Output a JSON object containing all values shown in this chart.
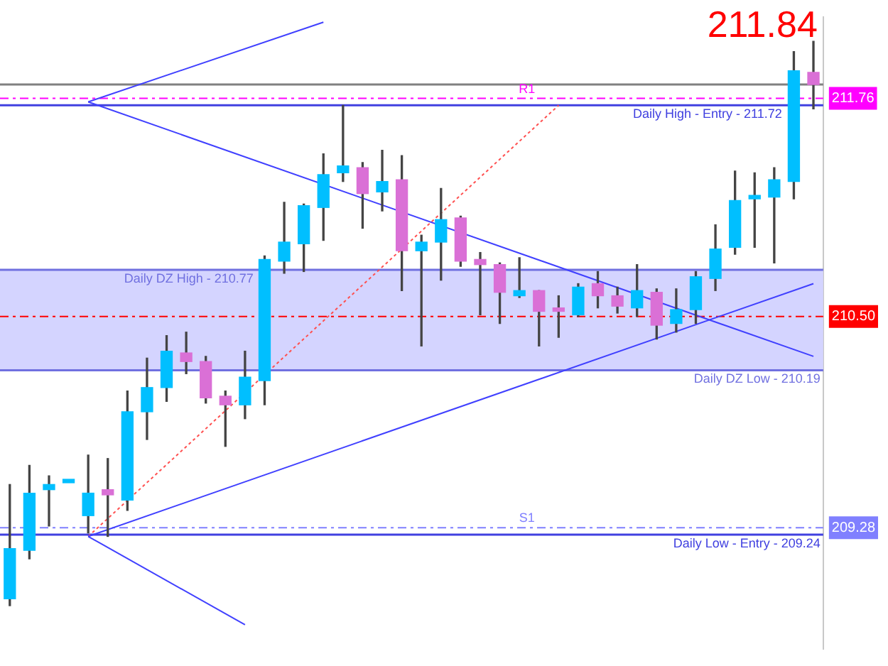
{
  "chart_data": {
    "type": "candlestick",
    "categories": [
      null,
      null,
      null,
      null,
      null,
      null,
      null,
      null,
      null,
      null,
      null,
      null,
      null,
      null,
      null,
      null,
      null,
      null,
      null,
      null,
      null,
      null,
      null,
      null,
      null,
      null,
      null,
      null,
      null,
      null,
      null,
      null,
      null,
      null,
      null,
      null,
      null,
      null,
      null,
      null,
      null,
      null
    ],
    "ohlc": [
      [
        208.87,
        209.53,
        208.83,
        209.16
      ],
      [
        209.15,
        209.64,
        209.1,
        209.48
      ],
      [
        209.5,
        209.58,
        209.29,
        209.53
      ],
      [
        209.54,
        209.56,
        209.54,
        209.56
      ],
      [
        209.35,
        209.7,
        209.25,
        209.48
      ],
      [
        209.5,
        209.68,
        209.23,
        209.47
      ],
      [
        209.44,
        210.07,
        209.38,
        209.95
      ],
      [
        209.95,
        210.26,
        209.79,
        210.09
      ],
      [
        210.09,
        210.39,
        210.01,
        210.3
      ],
      [
        210.29,
        210.41,
        210.17,
        210.24
      ],
      [
        210.24,
        210.27,
        210.0,
        210.03
      ],
      [
        210.04,
        210.07,
        209.75,
        209.99
      ],
      [
        209.99,
        210.3,
        209.91,
        210.15
      ],
      [
        210.13,
        210.85,
        209.99,
        210.83
      ],
      [
        210.82,
        211.16,
        210.75,
        210.93
      ],
      [
        210.92,
        211.15,
        210.76,
        211.14
      ],
      [
        211.13,
        211.44,
        210.94,
        211.32
      ],
      [
        211.33,
        211.72,
        211.28,
        211.37
      ],
      [
        211.36,
        211.39,
        211.01,
        211.21
      ],
      [
        211.22,
        211.46,
        211.11,
        211.28
      ],
      [
        211.29,
        211.43,
        210.65,
        210.88
      ],
      [
        210.88,
        210.97,
        210.33,
        210.93
      ],
      [
        210.93,
        211.24,
        210.71,
        211.06
      ],
      [
        211.07,
        211.08,
        210.79,
        210.82
      ],
      [
        210.83,
        210.87,
        210.51,
        210.8
      ],
      [
        210.8,
        210.81,
        210.46,
        210.64
      ],
      [
        210.62,
        210.84,
        210.61,
        210.65
      ],
      [
        210.65,
        210.65,
        210.33,
        210.53
      ],
      [
        210.55,
        210.62,
        210.38,
        210.53
      ],
      [
        210.51,
        210.69,
        210.5,
        210.67
      ],
      [
        210.69,
        210.76,
        210.55,
        210.62
      ],
      [
        210.62,
        210.67,
        210.52,
        210.56
      ],
      [
        210.55,
        210.8,
        210.5,
        210.65
      ],
      [
        210.64,
        210.66,
        210.37,
        210.45
      ],
      [
        210.46,
        210.66,
        210.41,
        210.54
      ],
      [
        210.54,
        210.76,
        210.46,
        210.73
      ],
      [
        210.72,
        211.03,
        210.65,
        210.89
      ],
      [
        210.9,
        211.34,
        210.86,
        211.17
      ],
      [
        211.18,
        211.33,
        210.9,
        211.2
      ],
      [
        211.19,
        211.36,
        210.81,
        211.29
      ],
      [
        211.28,
        212.03,
        211.18,
        211.92
      ],
      [
        211.91,
        212.09,
        211.7,
        211.84
      ]
    ],
    "colors": [
      "#00bfff",
      "#00bfff",
      "#00bfff",
      "#00bfff",
      "#00bfff",
      "#da70d6",
      "#00bfff",
      "#00bfff",
      "#00bfff",
      "#da70d6",
      "#da70d6",
      "#da70d6",
      "#00bfff",
      "#00bfff",
      "#00bfff",
      "#00bfff",
      "#00bfff",
      "#00bfff",
      "#da70d6",
      "#00bfff",
      "#da70d6",
      "#00bfff",
      "#00bfff",
      "#da70d6",
      "#da70d6",
      "#da70d6",
      "#00bfff",
      "#da70d6",
      "#da70d6",
      "#00bfff",
      "#da70d6",
      "#da70d6",
      "#00bfff",
      "#da70d6",
      "#00bfff",
      "#00bfff",
      "#00bfff",
      "#00bfff",
      "#00bfff",
      "#00bfff",
      "#00bfff",
      "#da70d6"
    ],
    "series": [
      {
        "type": "line",
        "color": "#4040ff",
        "values": [
          null,
          null,
          null,
          null,
          211.74,
          null,
          null,
          null,
          null,
          null,
          null,
          null,
          null,
          null,
          null,
          null,
          212.2,
          null,
          null,
          null,
          null,
          null,
          null,
          null,
          null,
          null,
          null,
          null,
          null,
          null,
          null,
          null,
          null,
          null,
          null,
          null,
          null,
          null,
          null,
          null,
          null,
          null
        ]
      },
      {
        "type": "line",
        "color": "#4040ff",
        "values": [
          null,
          null,
          null,
          null,
          211.74,
          null,
          null,
          null,
          null,
          null,
          null,
          null,
          null,
          null,
          null,
          null,
          null,
          null,
          null,
          null,
          null,
          null,
          null,
          null,
          null,
          null,
          null,
          null,
          null,
          null,
          null,
          null,
          null,
          null,
          null,
          null,
          null,
          null,
          null,
          null,
          null,
          210.27
        ]
      },
      {
        "type": "line",
        "color": "#4040ff",
        "values": [
          null,
          null,
          null,
          null,
          209.23,
          null,
          null,
          null,
          null,
          null,
          null,
          null,
          null,
          null,
          null,
          null,
          null,
          null,
          null,
          null,
          null,
          null,
          null,
          null,
          null,
          null,
          null,
          null,
          null,
          null,
          null,
          null,
          null,
          null,
          null,
          null,
          null,
          null,
          null,
          null,
          null,
          210.69
        ]
      },
      {
        "type": "line",
        "color": "#4040ff",
        "values": [
          null,
          null,
          null,
          null,
          209.23,
          null,
          null,
          null,
          null,
          null,
          null,
          null,
          208.72,
          null,
          null,
          null,
          null,
          null,
          null,
          null,
          null,
          null,
          null,
          null,
          null,
          null,
          null,
          null,
          null,
          null,
          null,
          null,
          null,
          null,
          null,
          null,
          null,
          null,
          null,
          null,
          null,
          null
        ]
      },
      {
        "type": "line",
        "color": "#ff5050",
        "line_style": "dotted",
        "values": [
          null,
          null,
          null,
          null,
          209.23,
          null,
          null,
          null,
          null,
          null,
          null,
          null,
          null,
          null,
          null,
          null,
          null,
          null,
          null,
          null,
          null,
          null,
          null,
          null,
          null,
          null,
          null,
          null,
          211.72,
          null,
          null,
          null,
          null,
          null,
          null,
          null,
          null,
          null,
          null,
          null,
          null,
          null
        ]
      }
    ],
    "ylim": [
      208.58,
      212.23
    ],
    "yticks": [
      {
        "value": 211.76,
        "label": "211.76"
      },
      {
        "value": 210.5,
        "label": "210.50"
      },
      {
        "value": 209.28,
        "label": "209.28"
      }
    ],
    "tick_labels": "y",
    "bands": [
      {
        "axis": "y",
        "from": 210.19,
        "to": 210.77,
        "color": "#d4d4ff"
      }
    ],
    "ref_lines": [
      {
        "axis": "y",
        "value": 211.84,
        "color": "#808080",
        "line_style": "solid"
      },
      {
        "axis": "y",
        "value": 211.76,
        "color": "#ff00ff",
        "line_style": "dashed",
        "label": "R1"
      },
      {
        "axis": "y",
        "value": 211.72,
        "color": "#4040e0",
        "line_style": "solid",
        "label": "Daily High - Entry - 211.72"
      },
      {
        "axis": "y",
        "value": 210.77,
        "color": "#7070e0",
        "line_style": "solid",
        "label": "Daily DZ High - 210.77"
      },
      {
        "axis": "y",
        "value": 210.5,
        "color": "#ff0000",
        "line_style": "dashed"
      },
      {
        "axis": "y",
        "value": 210.19,
        "color": "#7070e0",
        "line_style": "solid",
        "label": "Daily DZ Low - 210.19"
      },
      {
        "axis": "y",
        "value": 209.28,
        "color": "#8080ff",
        "line_style": "dashed",
        "label": "S1"
      },
      {
        "axis": "y",
        "value": 209.24,
        "color": "#4040e0",
        "line_style": "solid",
        "label": "Daily Low - Entry - 209.24"
      }
    ],
    "annotations": [
      "211.84"
    ],
    "legend": false,
    "grid": false
  }
}
